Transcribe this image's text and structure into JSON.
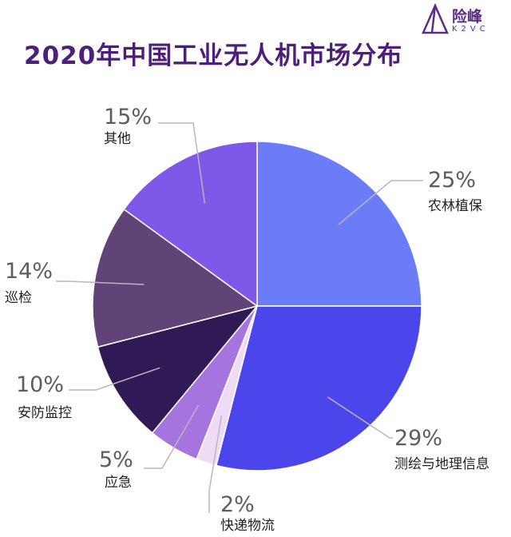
{
  "brand": {
    "name": "险峰",
    "sub": "K2VC",
    "color": "#5a2d85"
  },
  "chart_data": {
    "type": "pie",
    "title": "2020年中国工业无人机市场分布",
    "start_angle_deg": 0,
    "direction": "clockwise",
    "unit": "%",
    "slices": [
      {
        "label": "农林植保",
        "value": 25,
        "color": "#6b7cf8"
      },
      {
        "label": "测绘与地理信息",
        "value": 29,
        "color": "#4b46ec"
      },
      {
        "label": "快递物流",
        "value": 2,
        "color": "#eedcf7"
      },
      {
        "label": "应急",
        "value": 5,
        "color": "#a674de"
      },
      {
        "label": "安防监控",
        "value": 10,
        "color": "#2f1a55"
      },
      {
        "label": "巡检",
        "value": 14,
        "color": "#614477"
      },
      {
        "label": "其他",
        "value": 15,
        "color": "#7e58e8"
      }
    ]
  }
}
